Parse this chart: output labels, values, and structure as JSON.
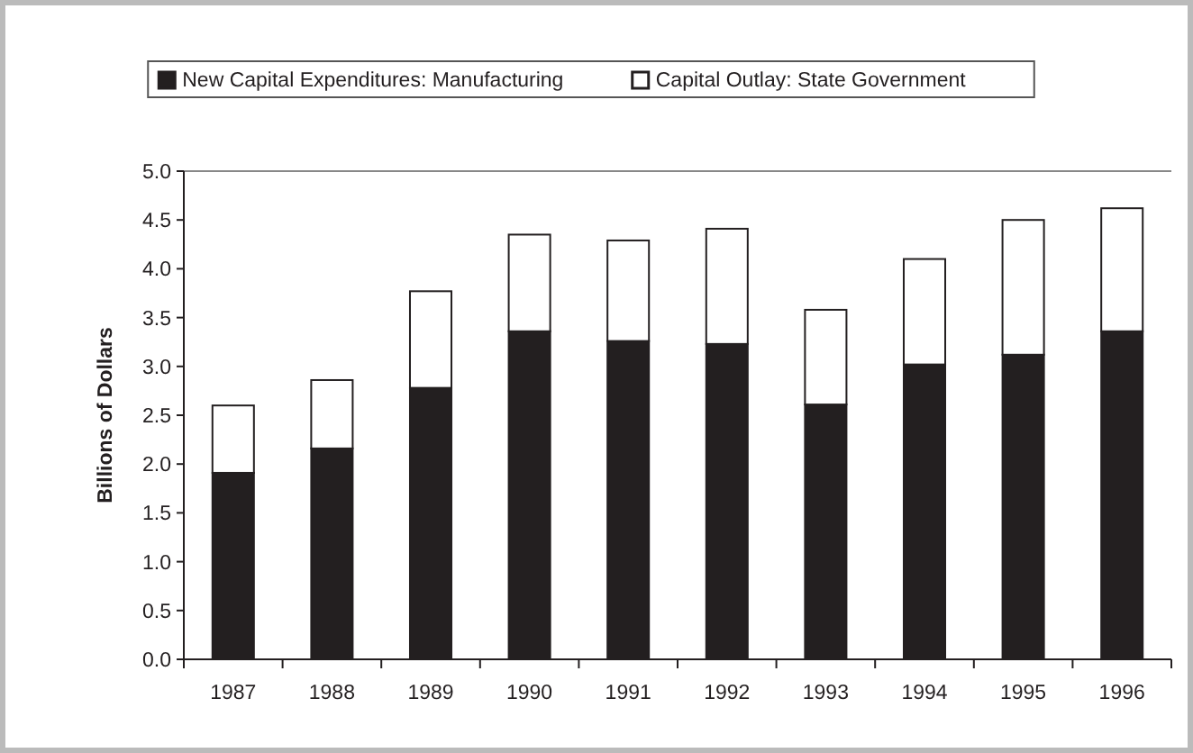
{
  "chart_data": {
    "type": "bar",
    "stacked": true,
    "ylabel": "Billions of Dollars",
    "categories": [
      "1987",
      "1988",
      "1989",
      "1990",
      "1991",
      "1992",
      "1993",
      "1994",
      "1995",
      "1996"
    ],
    "series": [
      {
        "name": "New Capital Expenditures: Manufacturing",
        "color": "#231f20",
        "values": [
          1.91,
          2.16,
          2.78,
          3.36,
          3.26,
          3.23,
          2.61,
          3.02,
          3.12,
          3.36
        ]
      },
      {
        "name": "Capital Outlay: State Government",
        "color": "#ffffff",
        "values": [
          0.69,
          0.7,
          0.99,
          0.99,
          1.03,
          1.18,
          0.97,
          1.08,
          1.38,
          1.26
        ]
      }
    ],
    "ylim": [
      0,
      5
    ],
    "yticks": [
      {
        "value": 0,
        "label": "0.0"
      },
      {
        "value": 0.5,
        "label": "0.5"
      },
      {
        "value": 1,
        "label": "1.0"
      },
      {
        "value": 1.5,
        "label": "1.5"
      },
      {
        "value": 2,
        "label": "2.0"
      },
      {
        "value": 2.5,
        "label": "2.5"
      },
      {
        "value": 3,
        "label": "3.0"
      },
      {
        "value": 3.5,
        "label": "3.5"
      },
      {
        "value": 4,
        "label": "4.0"
      },
      {
        "value": 4.5,
        "label": "4.5"
      },
      {
        "value": 5,
        "label": "5.0"
      }
    ],
    "grid": false,
    "legend": "top"
  }
}
